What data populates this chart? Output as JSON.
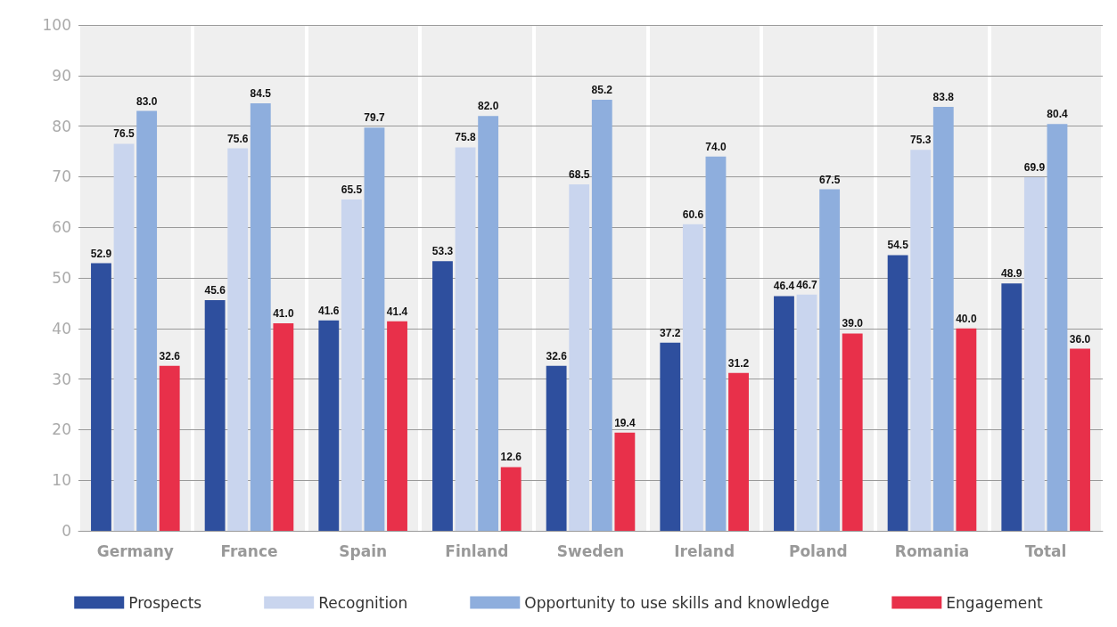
{
  "chart_data": {
    "type": "bar",
    "categories": [
      "Germany",
      "France",
      "Spain",
      "Finland",
      "Sweden",
      "Ireland",
      "Poland",
      "Romania",
      "Total"
    ],
    "series": [
      {
        "name": "Prospects",
        "color": "#2e4f9e",
        "values": [
          52.9,
          45.6,
          41.6,
          53.3,
          32.6,
          37.2,
          46.4,
          54.5,
          48.9
        ],
        "value_labels": [
          "52.9",
          "45.6",
          "41.6",
          "53.3",
          "32.6",
          "37.2",
          "46.4",
          "54.5",
          "48.9"
        ]
      },
      {
        "name": "Recognition",
        "color": "#c9d5ee",
        "values": [
          76.5,
          75.6,
          65.5,
          75.8,
          68.5,
          60.6,
          46.7,
          75.3,
          69.9
        ],
        "value_labels": [
          "76.5",
          "75.6",
          "65.5",
          "75.8",
          "68.5",
          "60.6",
          "46.7",
          "75.3",
          "69.9"
        ]
      },
      {
        "name": "Opportunity to use skills and knowledge",
        "color": "#8eaedd",
        "values": [
          83.0,
          84.5,
          79.7,
          82.0,
          85.2,
          74.0,
          67.5,
          83.8,
          80.4
        ],
        "value_labels": [
          "83.0",
          "84.5",
          "79.7",
          "82.0",
          "85.2",
          "74.0",
          "67.5",
          "83.8",
          "80.4"
        ]
      },
      {
        "name": "Engagement",
        "color": "#e8304a",
        "values": [
          32.6,
          41.0,
          41.4,
          12.6,
          19.4,
          31.2,
          39.0,
          40.0,
          36.0
        ],
        "value_labels": [
          "32.6",
          "41.0",
          "41.4",
          "12.6",
          "19.4",
          "31.2",
          "39.0",
          "40.0",
          "36.0"
        ]
      }
    ],
    "ylim": [
      0,
      100
    ],
    "yticks": [
      0,
      10,
      20,
      30,
      40,
      50,
      60,
      70,
      80,
      90,
      100
    ],
    "grid": "y",
    "legend": "bottom"
  }
}
